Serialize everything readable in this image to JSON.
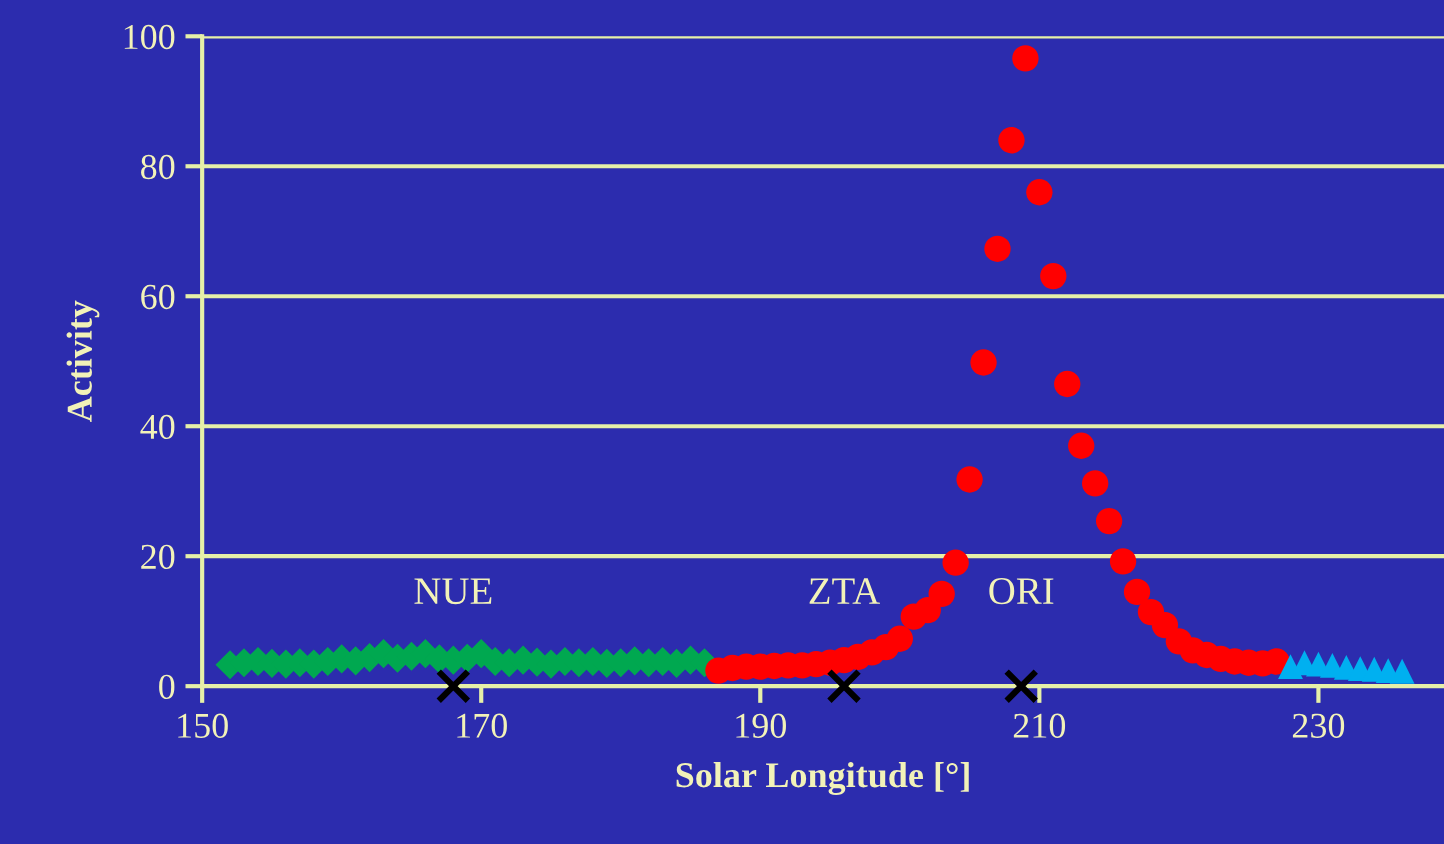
{
  "chart_data": {
    "type": "scatter",
    "xlabel": "Solar Longitude [°]",
    "ylabel": "Activity",
    "xlim": [
      150,
      239
    ],
    "ylim": [
      0,
      100
    ],
    "xticks": [
      150,
      170,
      190,
      210,
      230
    ],
    "yticks": [
      0,
      20,
      40,
      60,
      80,
      100
    ],
    "grid": "y",
    "series": [
      {
        "color": "#00a850",
        "marker": "diamond",
        "x": [
          152,
          153,
          154,
          155,
          156,
          157,
          158,
          159,
          160,
          161,
          162,
          163,
          164,
          165,
          166,
          167,
          168,
          169,
          170,
          171,
          172,
          173,
          174,
          175,
          176,
          177,
          178,
          179,
          180,
          181,
          182,
          183,
          184,
          185,
          186
        ],
        "values": [
          3.3,
          3.6,
          3.8,
          3.5,
          3.4,
          3.6,
          3.4,
          3.8,
          4.2,
          3.9,
          4.4,
          5.0,
          4.3,
          4.6,
          5.0,
          4.2,
          4.0,
          4.3,
          5.0,
          3.8,
          3.6,
          4.0,
          3.7,
          3.4,
          3.8,
          3.6,
          3.8,
          3.5,
          3.6,
          3.9,
          3.6,
          3.8,
          3.5,
          4.0,
          3.6
        ]
      },
      {
        "color": "#ff0000",
        "marker": "circle",
        "x": [
          187,
          188,
          189,
          190,
          191,
          192,
          193,
          194,
          195,
          196,
          197,
          198,
          199,
          200,
          201,
          202,
          203,
          204,
          205,
          206,
          207,
          208,
          209,
          210,
          211,
          212,
          213,
          214,
          215,
          216,
          217,
          218,
          219,
          220,
          221,
          222,
          223,
          224,
          225,
          226,
          227
        ],
        "values": [
          2.4,
          2.8,
          3.0,
          3.0,
          3.1,
          3.2,
          3.2,
          3.4,
          3.6,
          4.0,
          4.5,
          5.2,
          6.0,
          7.3,
          10.7,
          11.7,
          14.2,
          19.0,
          31.8,
          49.8,
          67.3,
          84.0,
          96.6,
          76.0,
          63.1,
          46.5,
          37.0,
          31.2,
          25.4,
          19.2,
          14.5,
          11.4,
          9.4,
          6.9,
          5.5,
          4.8,
          4.2,
          3.8,
          3.6,
          3.5,
          3.8
        ]
      },
      {
        "color": "#00b0f0",
        "marker": "triangle",
        "x": [
          228,
          229,
          230,
          231,
          232,
          233,
          234,
          235,
          236
        ],
        "values": [
          3.0,
          3.6,
          3.4,
          3.2,
          2.9,
          2.7,
          2.6,
          2.4,
          2.3
        ]
      },
      {
        "color": "#000000",
        "marker": "cross",
        "x": [
          168.0,
          196.0,
          208.7
        ],
        "values": [
          0,
          0,
          0
        ]
      }
    ],
    "annotations": [
      {
        "text": "NUE",
        "x": 168.0,
        "y": 0
      },
      {
        "text": "ZTA",
        "x": 196.0,
        "y": 0
      },
      {
        "text": "ORI",
        "x": 208.7,
        "y": 0
      }
    ]
  }
}
